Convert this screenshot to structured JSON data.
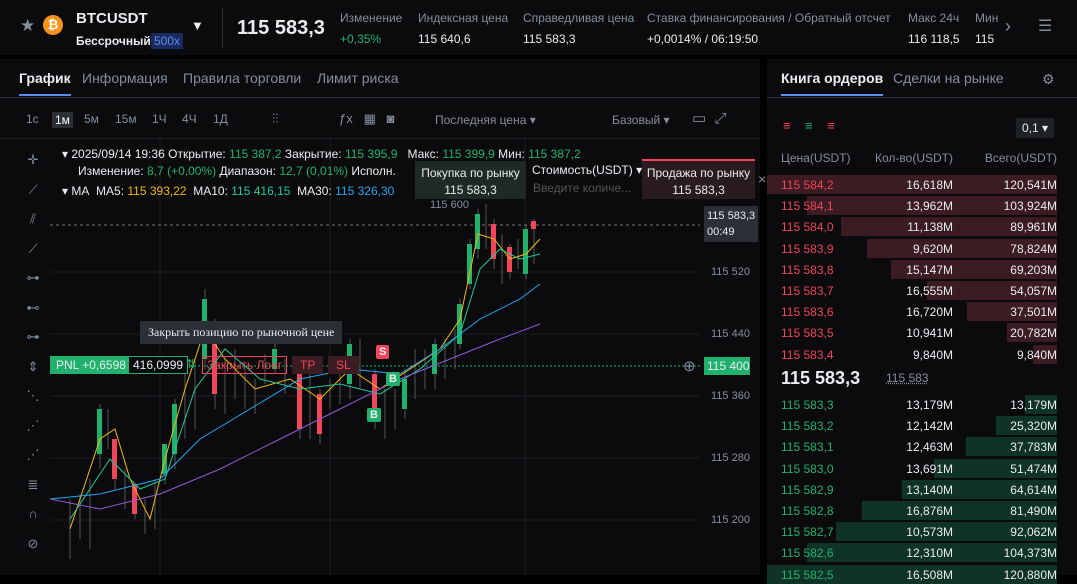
{
  "header": {
    "symbol": "BTCUSDT",
    "contract": "Бессрочный",
    "leverage": "500x",
    "price": "115 583,3",
    "stats": [
      {
        "label": "Изменение",
        "value": "+0,35%"
      },
      {
        "label": "Индексная цена",
        "value": "115 640,6"
      },
      {
        "label": "Справедливая цена",
        "value": "115 583,3"
      },
      {
        "label": "Ставка финансирования / Обратный отсчет",
        "value": "+0,0014% / 06:19:50"
      },
      {
        "label": "Макс 24ч",
        "value": "116 118,5"
      },
      {
        "label": "Мин",
        "value": "115"
      }
    ]
  },
  "tabs": [
    "График",
    "Информация",
    "Правила торговли",
    "Лимит риска"
  ],
  "timeframes": [
    "1с",
    "1м",
    "5м",
    "15м",
    "1Ч",
    "4Ч",
    "1Д"
  ],
  "toolbar": {
    "price_type": "Последняя цена",
    "view": "Базовый"
  },
  "ohlc": {
    "date": "2025/09/14 19:36",
    "open_label": "Открытие:",
    "open": "115 387,2",
    "close_label": "Закрытие:",
    "close": "115 395,9",
    "high_label": "Макс:",
    "high": "115 399,9",
    "low_label": "Мин:",
    "low": "115 387,2",
    "change_label": "Изменение:",
    "change": "8,7 (+0,00%)",
    "range_label": "Диапазон:",
    "range": "12,7 (0,01%)",
    "exec": "Исполн."
  },
  "ma": {
    "label": "MA",
    "ma5_label": "MA5:",
    "ma5": "115 393,22",
    "ma10_label": "MA10:",
    "ma10": "115 416,15",
    "ma30_label": "MA30:",
    "ma30": "115 326,30"
  },
  "quick_order": {
    "buy_label": "Покупка по рынку",
    "buy_price": "115 583,3",
    "cost_label": "Стоимость(USDT)",
    "placeholder": "Введите количе...",
    "sell_label": "Продажа по рынку",
    "sell_price": "115 583,3"
  },
  "price_axis": {
    "high_marker": "115 600",
    "labels": [
      "115 520",
      "115 440",
      "115 360",
      "115 280",
      "115 200"
    ],
    "current": "115 583,3",
    "countdown": "00:49",
    "position_price": "115 400"
  },
  "position": {
    "pnl": "PNL +0,6598",
    "size": "416,0999",
    "close": "Закрыть Лонг",
    "tp": "TP",
    "sl": "SL",
    "tooltip": "Закрыть позицию по рыночной цене",
    "markers": [
      "S",
      "B",
      "B"
    ]
  },
  "order_book": {
    "tabs": [
      "Книга ордеров",
      "Сделки на рынке"
    ],
    "precision": "0,1",
    "headers": [
      "Цена(USDT)",
      "Кол-во(USDT)",
      "Всего(USDT)"
    ],
    "asks": [
      [
        "115 584,2",
        "16,618M",
        "120,541M"
      ],
      [
        "115 584,1",
        "13,962M",
        "103,924M"
      ],
      [
        "115 584,0",
        "11,138M",
        "89,961M"
      ],
      [
        "115 583,9",
        "9,620M",
        "78,824M"
      ],
      [
        "115 583,8",
        "15,147M",
        "69,203M"
      ],
      [
        "115 583,7",
        "16,555M",
        "54,057M"
      ],
      [
        "115 583,6",
        "16,720M",
        "37,501M"
      ],
      [
        "115 583,5",
        "10,941M",
        "20,782M"
      ],
      [
        "115 583,4",
        "9,840M",
        "9,840M"
      ]
    ],
    "mid_price": "115 583,3",
    "mark_price": "115 583",
    "bids": [
      [
        "115 583,3",
        "13,179M",
        "13,179M"
      ],
      [
        "115 583,2",
        "12,142M",
        "25,320M"
      ],
      [
        "115 583,1",
        "12,463M",
        "37,783M"
      ],
      [
        "115 583,0",
        "13,691M",
        "51,474M"
      ],
      [
        "115 582,9",
        "13,140M",
        "64,614M"
      ],
      [
        "115 582,8",
        "16,876M",
        "81,490M"
      ],
      [
        "115 582,7",
        "10,573M",
        "92,062M"
      ],
      [
        "115 582,6",
        "12,310M",
        "104,373M"
      ],
      [
        "115 582,5",
        "16,508M",
        "120,880M"
      ]
    ]
  }
}
